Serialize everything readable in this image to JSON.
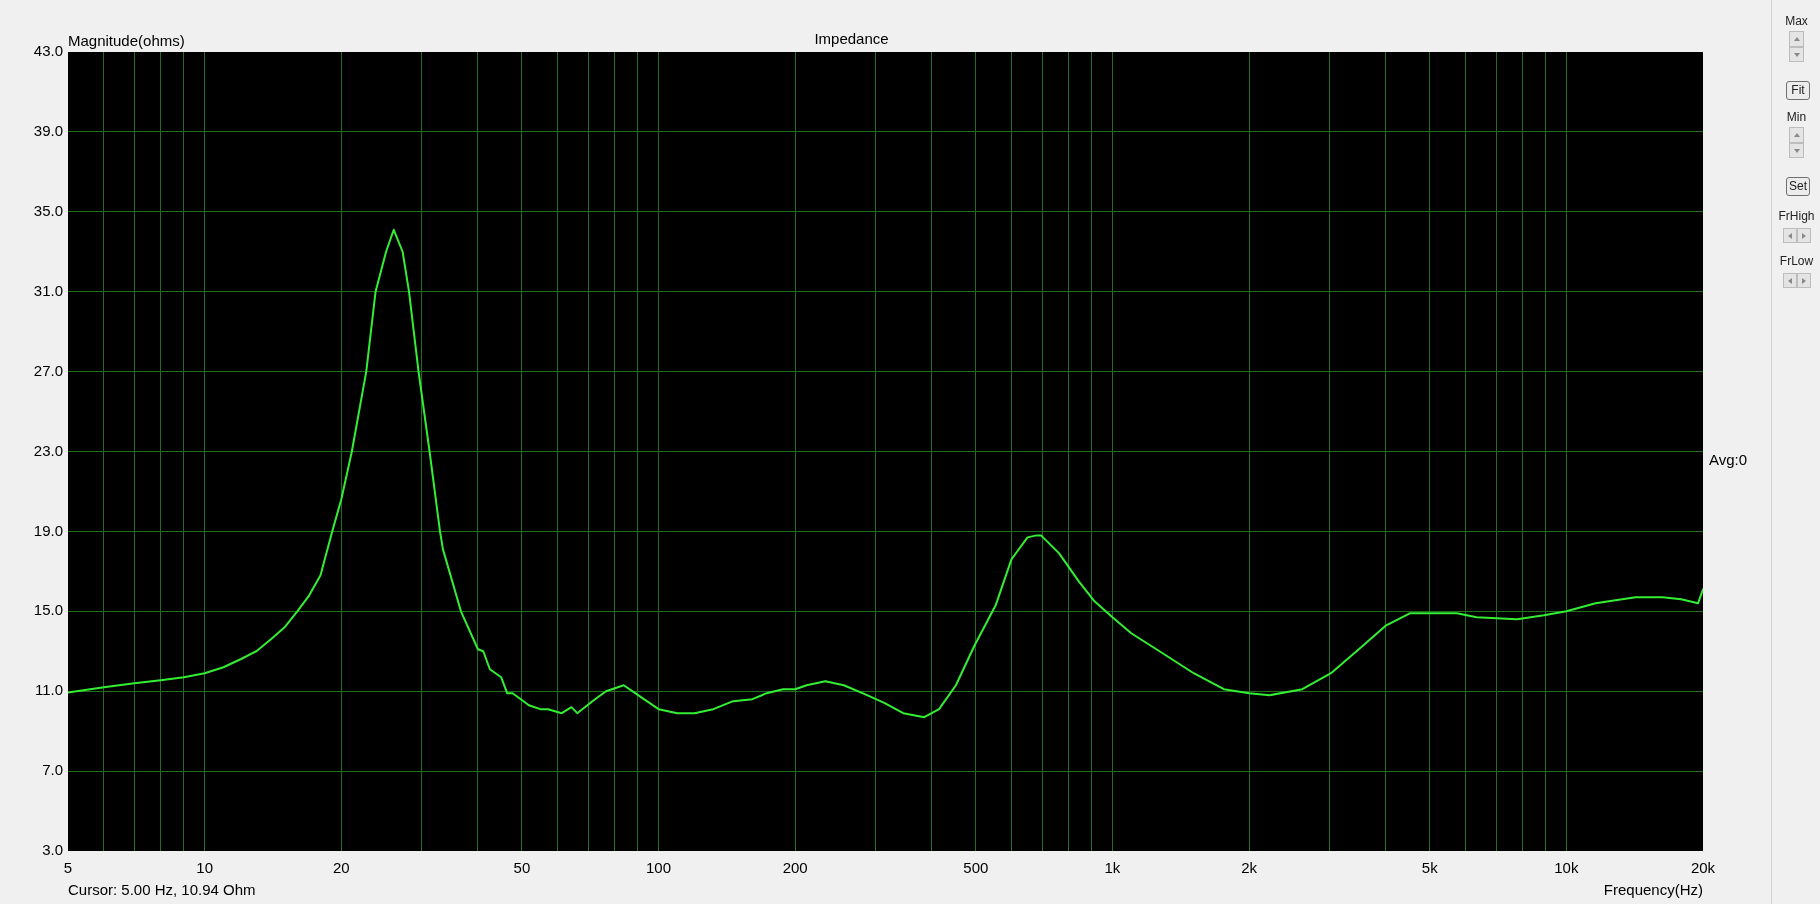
{
  "chart_data": {
    "type": "line",
    "title": "Impedance",
    "xlabel": "Frequency(Hz)",
    "ylabel": "Magnitude(ohms)",
    "annotations": [
      "Cursor: 5.00 Hz, 10.94 Ohm",
      "Avg:0",
      "Max",
      "Fit",
      "Min",
      "Set",
      "FrHigh",
      "FrLow"
    ],
    "x": [
      5,
      6,
      7,
      8,
      9,
      10,
      11,
      12,
      13,
      14,
      15,
      16,
      17,
      18,
      19.1,
      20,
      21.1,
      22.7,
      23.8,
      25.1,
      26.1,
      27.3,
      28.2,
      29.6,
      31.3,
      33,
      33.5,
      36.7,
      40,
      41.1,
      42.5,
      45,
      46.4,
      47.7,
      51.8,
      54.9,
      57.1,
      61.2,
      64.3,
      66.2,
      71.5,
      76.6,
      83.8,
      91.5,
      100,
      110,
      120,
      132,
      146,
      161,
      173,
      188,
      193,
      200,
      212,
      233,
      256,
      288,
      315,
      346,
      385,
      415,
      452,
      497,
      553,
      599,
      650,
      680,
      696,
      763,
      843,
      913,
      1000,
      1100,
      1290,
      1510,
      1760,
      2000,
      2220,
      2620,
      3030,
      3490,
      4010,
      4520,
      5100,
      5740,
      6340,
      7770,
      8930,
      10000,
      11600,
      14200,
      16300,
      17900,
      19500,
      20000
    ],
    "values": [
      10.94,
      11.2,
      11.4,
      11.55,
      11.7,
      11.9,
      12.2,
      12.6,
      13.0,
      13.6,
      14.2,
      15.0,
      15.8,
      16.8,
      19.0,
      20.6,
      23.0,
      27.0,
      31.0,
      33.0,
      34.1,
      33.0,
      31.0,
      27.0,
      23.0,
      19.0,
      18.1,
      15.0,
      13.1,
      13.0,
      12.1,
      11.7,
      10.9,
      10.9,
      10.3,
      10.1,
      10.1,
      9.9,
      10.2,
      9.9,
      10.5,
      11.0,
      11.3,
      10.7,
      10.1,
      9.9,
      9.9,
      10.1,
      10.5,
      10.6,
      10.9,
      11.1,
      11.1,
      11.1,
      11.3,
      11.5,
      11.3,
      10.8,
      10.4,
      9.9,
      9.7,
      10.1,
      11.3,
      13.3,
      15.3,
      17.6,
      18.7,
      18.8,
      18.8,
      17.9,
      16.5,
      15.5,
      14.7,
      13.9,
      12.9,
      11.9,
      11.1,
      10.9,
      10.8,
      11.1,
      11.9,
      13.1,
      14.3,
      14.9,
      14.9,
      14.9,
      14.7,
      14.6,
      14.8,
      15.0,
      15.4,
      15.7,
      15.7,
      15.6,
      15.4,
      16.1
    ],
    "color": "#33ee33",
    "marker": "none",
    "line_style": "solid",
    "log": "x",
    "grid": true,
    "xlim": [
      5,
      20000
    ],
    "ylim": [
      3,
      43
    ],
    "xticks": [
      5,
      {
        "value": 6,
        "label": null
      },
      {
        "value": 7,
        "label": null
      },
      {
        "value": 8,
        "label": null
      },
      {
        "value": 9,
        "label": null
      },
      10,
      20,
      {
        "value": 30,
        "label": null
      },
      {
        "value": 40,
        "label": null
      },
      50,
      {
        "value": 60,
        "label": null
      },
      {
        "value": 70,
        "label": null
      },
      {
        "value": 80,
        "label": null
      },
      {
        "value": 90,
        "label": null
      },
      100,
      200,
      {
        "value": 300,
        "label": null
      },
      {
        "value": 400,
        "label": null
      },
      500,
      {
        "value": 600,
        "label": null
      },
      {
        "value": 700,
        "label": null
      },
      {
        "value": 800,
        "label": null
      },
      {
        "value": 900,
        "label": null
      },
      {
        "value": 1000,
        "label": "1k"
      },
      {
        "value": 2000,
        "label": "2k"
      },
      {
        "value": 3000,
        "label": null
      },
      {
        "value": 4000,
        "label": null
      },
      {
        "value": 5000,
        "label": "5k"
      },
      {
        "value": 6000,
        "label": null
      },
      {
        "value": 7000,
        "label": null
      },
      {
        "value": 8000,
        "label": null
      },
      {
        "value": 9000,
        "label": null
      },
      {
        "value": 10000,
        "label": "10k"
      },
      {
        "value": 20000,
        "label": "20k"
      }
    ],
    "yticks": [
      {
        "value": 3,
        "label": "3.0"
      },
      {
        "value": 7,
        "label": "7.0"
      },
      {
        "value": 11,
        "label": "11.0"
      },
      {
        "value": 15,
        "label": "15.0"
      },
      {
        "value": 19,
        "label": "19.0"
      },
      {
        "value": 23,
        "label": "23.0"
      },
      {
        "value": 27,
        "label": "27.0"
      },
      {
        "value": 31,
        "label": "31.0"
      },
      {
        "value": 35,
        "label": "35.0"
      },
      {
        "value": 39,
        "label": "39.0"
      },
      {
        "value": 43,
        "label": "43.0"
      }
    ]
  }
}
